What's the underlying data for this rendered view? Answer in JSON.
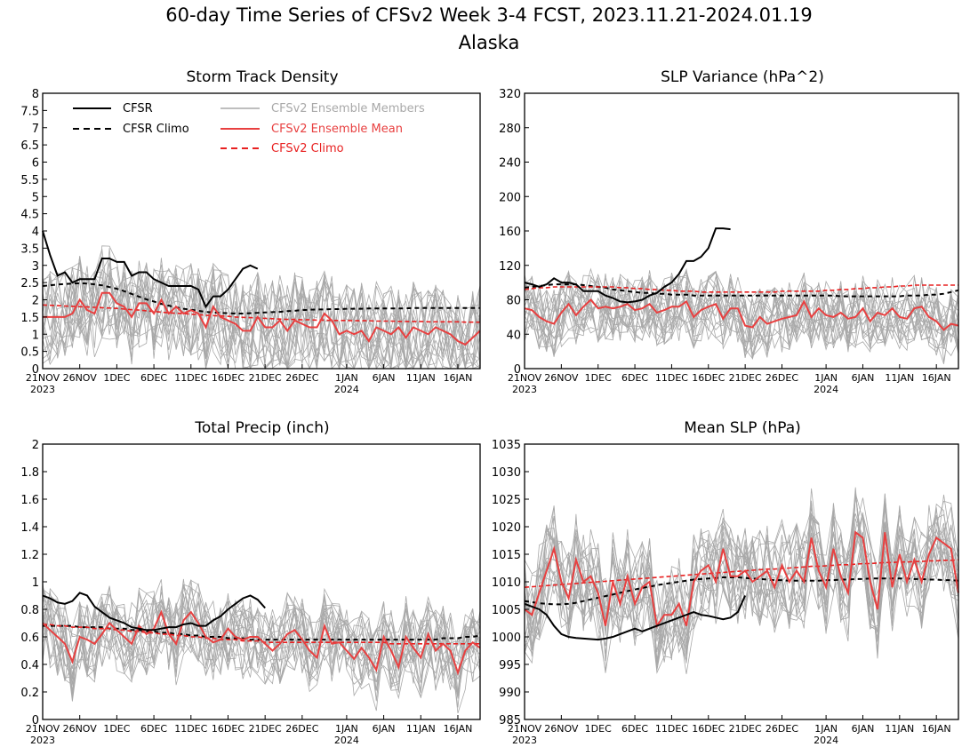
{
  "figure": {
    "title": "60-day Time Series of CFSv2 Week 3-4 FCST, 2023.11.21-2024.01.19",
    "subtitle": "Alaska"
  },
  "colors": {
    "cfsr": "#000000",
    "cfsr_climo": "#000000",
    "members": "#a9a9a9",
    "ensemble_mean": "#e84040",
    "cfsv2_climo": "#e82020",
    "background": "#ffffff"
  },
  "legend": [
    {
      "label": "CFSR",
      "style": "solid",
      "color": "#000000"
    },
    {
      "label": "CFSR Climo",
      "style": "dashed",
      "color": "#000000"
    },
    {
      "label": "CFSv2 Ensemble Members",
      "style": "solid",
      "color": "#a9a9a9"
    },
    {
      "label": "CFSv2 Ensemble Mean",
      "style": "solid",
      "color": "#e84040"
    },
    {
      "label": "CFSv2 Climo",
      "style": "dashed",
      "color": "#e82020"
    }
  ],
  "x_ticks": {
    "labels": [
      "21NOV",
      "26NOV",
      "1DEC",
      "6DEC",
      "11DEC",
      "16DEC",
      "21DEC",
      "26DEC",
      "1JAN",
      "6JAN",
      "11JAN",
      "16JAN"
    ],
    "days": [
      0,
      5,
      10,
      15,
      20,
      25,
      30,
      35,
      41,
      46,
      51,
      56
    ],
    "year_labels": [
      {
        "text": "2023",
        "day": 0
      },
      {
        "text": "2024",
        "day": 41
      }
    ]
  },
  "chart_data": [
    {
      "type": "line",
      "title": "Storm Track Density",
      "xlim": [
        0,
        59
      ],
      "ylim": [
        0,
        8
      ],
      "yticks": [
        "0",
        "0.5",
        "1",
        "1.5",
        "2",
        "2.5",
        "3",
        "3.5",
        "4",
        "4.5",
        "5",
        "5.5",
        "6",
        "6.5",
        "7",
        "7.5",
        "8"
      ],
      "cfsr": [
        4.0,
        3.3,
        2.7,
        2.8,
        2.5,
        2.6,
        2.6,
        2.6,
        3.2,
        3.2,
        3.1,
        3.1,
        2.7,
        2.8,
        2.8,
        2.6,
        2.5,
        2.4,
        2.4,
        2.4,
        2.4,
        2.3,
        1.8,
        2.1,
        2.1,
        2.3,
        2.6,
        2.9,
        3.0,
        2.9
      ],
      "cfsr_climo": [
        2.4,
        2.42,
        2.44,
        2.46,
        2.47,
        2.48,
        2.47,
        2.45,
        2.42,
        2.37,
        2.32,
        2.25,
        2.17,
        2.09,
        2.01,
        1.95,
        1.88,
        1.83,
        1.78,
        1.74,
        1.71,
        1.68,
        1.65,
        1.63,
        1.62,
        1.61,
        1.6,
        1.6,
        1.61,
        1.62,
        1.63,
        1.64,
        1.65,
        1.67,
        1.68,
        1.7,
        1.71,
        1.72,
        1.72,
        1.73,
        1.73,
        1.74,
        1.74,
        1.74,
        1.75,
        1.75,
        1.75,
        1.75,
        1.75,
        1.75,
        1.76,
        1.76,
        1.76,
        1.76,
        1.76,
        1.76,
        1.76,
        1.76,
        1.76,
        1.76
      ],
      "cfsv2_mean": [
        1.5,
        1.5,
        1.5,
        1.5,
        1.6,
        2.0,
        1.7,
        1.6,
        2.2,
        2.2,
        1.9,
        1.8,
        1.5,
        1.9,
        1.9,
        1.6,
        2.0,
        1.6,
        1.8,
        1.6,
        1.7,
        1.6,
        1.2,
        1.8,
        1.5,
        1.4,
        1.3,
        1.1,
        1.1,
        1.5,
        1.2,
        1.2,
        1.4,
        1.1,
        1.4,
        1.3,
        1.2,
        1.2,
        1.6,
        1.4,
        1.0,
        1.1,
        1.0,
        1.1,
        0.8,
        1.2,
        1.1,
        1.0,
        1.2,
        0.9,
        1.2,
        1.1,
        1.0,
        1.2,
        1.1,
        1.0,
        0.8,
        0.7,
        0.9,
        1.1
      ],
      "cfsv2_climo": [
        1.85,
        1.84,
        1.83,
        1.82,
        1.81,
        1.8,
        1.79,
        1.78,
        1.77,
        1.76,
        1.75,
        1.73,
        1.71,
        1.7,
        1.68,
        1.66,
        1.64,
        1.62,
        1.61,
        1.6,
        1.58,
        1.57,
        1.55,
        1.54,
        1.53,
        1.52,
        1.5,
        1.49,
        1.48,
        1.47,
        1.46,
        1.45,
        1.44,
        1.43,
        1.43,
        1.42,
        1.42,
        1.41,
        1.41,
        1.4,
        1.4,
        1.4,
        1.39,
        1.39,
        1.39,
        1.38,
        1.38,
        1.38,
        1.37,
        1.37,
        1.37,
        1.37,
        1.36,
        1.36,
        1.36,
        1.36,
        1.36,
        1.35,
        1.35,
        1.35
      ],
      "member_count": 20,
      "member_spread": 1.4
    },
    {
      "type": "line",
      "title": "SLP Variance (hPa^2)",
      "xlim": [
        0,
        59
      ],
      "ylim": [
        0,
        320
      ],
      "yticks": [
        "0",
        "40",
        "80",
        "120",
        "160",
        "200",
        "240",
        "280",
        "320"
      ],
      "cfsr": [
        100,
        98,
        95,
        98,
        105,
        100,
        100,
        98,
        90,
        90,
        90,
        85,
        82,
        78,
        77,
        78,
        80,
        85,
        88,
        95,
        100,
        110,
        125,
        125,
        130,
        140,
        163,
        163,
        162
      ],
      "cfsr_climo": [
        94,
        95,
        96,
        97,
        98,
        98,
        98,
        98,
        97,
        96,
        95,
        94,
        92,
        91,
        90,
        89,
        88,
        88,
        87,
        87,
        86,
        86,
        86,
        85,
        85,
        85,
        85,
        85,
        85,
        85,
        85,
        85,
        85,
        85,
        85,
        85,
        85,
        85,
        85,
        85,
        85,
        85,
        85,
        84,
        84,
        84,
        84,
        84,
        84,
        84,
        84,
        84,
        85,
        85,
        85,
        86,
        86,
        87,
        89,
        91
      ],
      "cfsv2_mean": [
        70,
        68,
        60,
        55,
        52,
        65,
        75,
        62,
        72,
        80,
        70,
        72,
        70,
        72,
        75,
        68,
        70,
        75,
        65,
        68,
        72,
        72,
        78,
        60,
        68,
        72,
        75,
        58,
        70,
        70,
        50,
        48,
        60,
        52,
        55,
        58,
        60,
        62,
        78,
        60,
        70,
        62,
        60,
        65,
        58,
        60,
        70,
        55,
        65,
        62,
        70,
        60,
        58,
        70,
        72,
        60,
        55,
        45,
        52,
        50
      ],
      "cfsv2_climo": [
        92,
        93,
        94,
        94,
        95,
        95,
        95,
        95,
        95,
        95,
        95,
        95,
        95,
        94,
        94,
        93,
        93,
        92,
        92,
        91,
        91,
        90,
        90,
        90,
        89,
        89,
        89,
        89,
        89,
        89,
        89,
        89,
        89,
        89,
        89,
        90,
        90,
        90,
        90,
        90,
        90,
        91,
        91,
        92,
        92,
        93,
        93,
        94,
        94,
        95,
        95,
        96,
        96,
        97,
        97,
        97,
        97,
        97,
        97,
        97
      ],
      "member_count": 20,
      "member_spread": 40
    },
    {
      "type": "line",
      "title": "Total Precip (inch)",
      "xlim": [
        0,
        59
      ],
      "ylim": [
        0,
        2
      ],
      "yticks": [
        "0",
        "0.2",
        "0.4",
        "0.6",
        "0.8",
        "1",
        "1.2",
        "1.4",
        "1.6",
        "1.8",
        "2"
      ],
      "cfsr": [
        0.9,
        0.88,
        0.85,
        0.84,
        0.86,
        0.92,
        0.9,
        0.82,
        0.78,
        0.74,
        0.72,
        0.7,
        0.67,
        0.66,
        0.65,
        0.65,
        0.66,
        0.67,
        0.67,
        0.69,
        0.7,
        0.68,
        0.68,
        0.72,
        0.75,
        0.8,
        0.84,
        0.88,
        0.9,
        0.87,
        0.81
      ],
      "cfsr_climo": [
        0.68,
        0.68,
        0.68,
        0.68,
        0.68,
        0.67,
        0.67,
        0.67,
        0.67,
        0.66,
        0.66,
        0.66,
        0.65,
        0.65,
        0.64,
        0.64,
        0.63,
        0.63,
        0.62,
        0.62,
        0.61,
        0.61,
        0.6,
        0.6,
        0.6,
        0.59,
        0.59,
        0.59,
        0.58,
        0.58,
        0.58,
        0.58,
        0.58,
        0.58,
        0.58,
        0.58,
        0.58,
        0.58,
        0.58,
        0.58,
        0.58,
        0.58,
        0.58,
        0.58,
        0.58,
        0.58,
        0.58,
        0.58,
        0.58,
        0.58,
        0.58,
        0.58,
        0.58,
        0.58,
        0.59,
        0.59,
        0.59,
        0.6,
        0.6,
        0.61
      ],
      "cfsv2_mean": [
        0.7,
        0.65,
        0.6,
        0.55,
        0.42,
        0.6,
        0.58,
        0.55,
        0.62,
        0.7,
        0.65,
        0.6,
        0.55,
        0.68,
        0.62,
        0.66,
        0.78,
        0.62,
        0.55,
        0.72,
        0.78,
        0.7,
        0.6,
        0.56,
        0.58,
        0.66,
        0.6,
        0.58,
        0.6,
        0.6,
        0.55,
        0.5,
        0.55,
        0.62,
        0.65,
        0.58,
        0.5,
        0.45,
        0.68,
        0.55,
        0.56,
        0.5,
        0.44,
        0.52,
        0.45,
        0.36,
        0.6,
        0.5,
        0.38,
        0.6,
        0.52,
        0.45,
        0.62,
        0.5,
        0.55,
        0.5,
        0.34,
        0.5,
        0.56,
        0.52
      ],
      "cfsv2_climo": [
        0.69,
        0.69,
        0.68,
        0.68,
        0.67,
        0.67,
        0.67,
        0.66,
        0.66,
        0.66,
        0.65,
        0.65,
        0.64,
        0.64,
        0.63,
        0.63,
        0.62,
        0.62,
        0.61,
        0.61,
        0.6,
        0.6,
        0.59,
        0.59,
        0.58,
        0.58,
        0.58,
        0.57,
        0.57,
        0.57,
        0.56,
        0.56,
        0.56,
        0.56,
        0.56,
        0.56,
        0.56,
        0.56,
        0.56,
        0.56,
        0.56,
        0.56,
        0.56,
        0.56,
        0.56,
        0.56,
        0.56,
        0.55,
        0.55,
        0.55,
        0.55,
        0.55,
        0.55,
        0.55,
        0.55,
        0.55,
        0.55,
        0.55,
        0.55,
        0.55
      ],
      "member_count": 20,
      "member_spread": 0.3
    },
    {
      "type": "line",
      "title": "Mean SLP (hPa)",
      "xlim": [
        0,
        59
      ],
      "ylim": [
        985,
        1035
      ],
      "yticks": [
        "985",
        "990",
        "995",
        "1000",
        "1005",
        "1010",
        "1015",
        "1020",
        "1025",
        "1030",
        "1035"
      ],
      "cfsr": [
        1006,
        1005.5,
        1005,
        1004,
        1002,
        1000.5,
        1000,
        999.8,
        999.7,
        999.6,
        999.5,
        999.7,
        1000,
        1000.5,
        1001,
        1001.5,
        1001,
        1001.5,
        1002,
        1002.5,
        1003,
        1003.5,
        1004,
        1004.5,
        1004,
        1003.8,
        1003.5,
        1003.2,
        1003.5,
        1004.5,
        1007.5
      ],
      "cfsr_climo": [
        1006.5,
        1006.3,
        1006.1,
        1006,
        1005.9,
        1005.9,
        1006,
        1006.2,
        1006.5,
        1006.8,
        1007.1,
        1007.4,
        1007.7,
        1008,
        1008.3,
        1008.6,
        1008.9,
        1009.1,
        1009.4,
        1009.6,
        1009.8,
        1010,
        1010.2,
        1010.4,
        1010.5,
        1010.6,
        1010.7,
        1010.8,
        1010.8,
        1010.8,
        1010.7,
        1010.6,
        1010.5,
        1010.4,
        1010.3,
        1010.3,
        1010.2,
        1010.2,
        1010.2,
        1010.2,
        1010.2,
        1010.3,
        1010.3,
        1010.4,
        1010.4,
        1010.5,
        1010.5,
        1010.6,
        1010.6,
        1010.6,
        1010.6,
        1010.6,
        1010.6,
        1010.5,
        1010.5,
        1010.4,
        1010.4,
        1010.3,
        1010.3,
        1010.2
      ],
      "cfsv2_mean": [
        1005,
        1004,
        1008,
        1012,
        1016,
        1010,
        1007,
        1014,
        1010,
        1011,
        1008,
        1002,
        1010,
        1006,
        1011,
        1006,
        1009,
        1010,
        1002,
        1004,
        1004,
        1006,
        1002,
        1010,
        1012,
        1013,
        1010,
        1016,
        1011,
        1011,
        1012,
        1010,
        1011,
        1012,
        1009,
        1013,
        1010,
        1012,
        1010,
        1018,
        1012,
        1009,
        1016,
        1011,
        1008,
        1019,
        1018,
        1010,
        1005,
        1019,
        1009,
        1015,
        1010,
        1014,
        1010,
        1015,
        1018,
        1017,
        1016,
        1008
      ],
      "cfsv2_climo": [
        1009,
        1009.1,
        1009.2,
        1009.3,
        1009.4,
        1009.5,
        1009.6,
        1009.7,
        1009.8,
        1009.9,
        1010,
        1010.1,
        1010.2,
        1010.3,
        1010.4,
        1010.5,
        1010.6,
        1010.7,
        1010.8,
        1010.9,
        1011,
        1011.1,
        1011.2,
        1011.3,
        1011.4,
        1011.5,
        1011.6,
        1011.7,
        1011.8,
        1011.9,
        1012,
        1012.1,
        1012.2,
        1012.3,
        1012.3,
        1012.4,
        1012.5,
        1012.6,
        1012.7,
        1012.8,
        1012.8,
        1012.9,
        1013,
        1013.1,
        1013.1,
        1013.2,
        1013.3,
        1013.3,
        1013.4,
        1013.5,
        1013.5,
        1013.6,
        1013.6,
        1013.7,
        1013.7,
        1013.8,
        1013.8,
        1013.9,
        1013.9,
        1014
      ],
      "member_count": 20,
      "member_spread": 9
    }
  ]
}
